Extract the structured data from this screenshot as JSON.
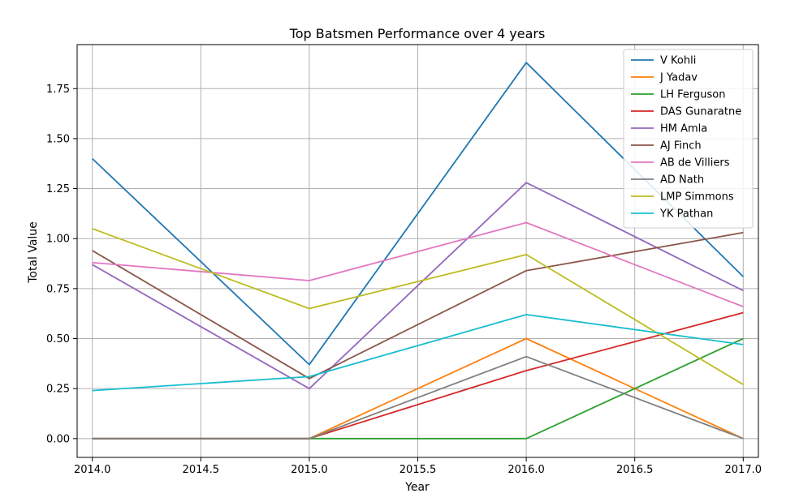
{
  "chart_data": {
    "type": "line",
    "title": "Top Batsmen Performance over 4 years",
    "xlabel": "Year",
    "ylabel": "Total Value",
    "x": [
      2014,
      2015,
      2016,
      2017
    ],
    "xlim": [
      2013.93,
      2017.07
    ],
    "ylim": [
      -0.094,
      1.97
    ],
    "xticks": [
      "2014.0",
      "2014.5",
      "2015.0",
      "2015.5",
      "2016.0",
      "2016.5",
      "2017.0"
    ],
    "xtick_values": [
      2014.0,
      2014.5,
      2015.0,
      2015.5,
      2016.0,
      2016.5,
      2017.0
    ],
    "yticks": [
      "0.00",
      "0.25",
      "0.50",
      "0.75",
      "1.00",
      "1.25",
      "1.50",
      "1.75"
    ],
    "ytick_values": [
      0.0,
      0.25,
      0.5,
      0.75,
      1.0,
      1.25,
      1.5,
      1.75
    ],
    "grid": true,
    "legend_position": "top-right",
    "series": [
      {
        "name": "V Kohli",
        "color": "#1f77b4",
        "values": [
          1.4,
          0.37,
          1.88,
          0.81
        ]
      },
      {
        "name": "J Yadav",
        "color": "#ff7f0e",
        "values": [
          0.0,
          0.0,
          0.5,
          0.0
        ]
      },
      {
        "name": "LH Ferguson",
        "color": "#2ca02c",
        "values": [
          0.0,
          0.0,
          0.0,
          0.5
        ]
      },
      {
        "name": "DAS Gunaratne",
        "color": "#d62728",
        "values": [
          0.0,
          0.0,
          0.34,
          0.63
        ]
      },
      {
        "name": "HM Amla",
        "color": "#9467bd",
        "values": [
          0.87,
          0.25,
          1.28,
          0.74
        ]
      },
      {
        "name": "AJ Finch",
        "color": "#8c564b",
        "values": [
          0.94,
          0.3,
          0.84,
          1.03
        ]
      },
      {
        "name": "AB de Villiers",
        "color": "#e377c2",
        "values": [
          0.88,
          0.79,
          1.08,
          0.66
        ]
      },
      {
        "name": "AD Nath",
        "color": "#7f7f7f",
        "values": [
          0.0,
          0.0,
          0.41,
          0.0
        ]
      },
      {
        "name": "LMP Simmons",
        "color": "#bcbd22",
        "values": [
          1.05,
          0.65,
          0.92,
          0.27
        ]
      },
      {
        "name": "YK Pathan",
        "color": "#17becf",
        "values": [
          0.24,
          0.31,
          0.62,
          0.47
        ]
      }
    ]
  }
}
